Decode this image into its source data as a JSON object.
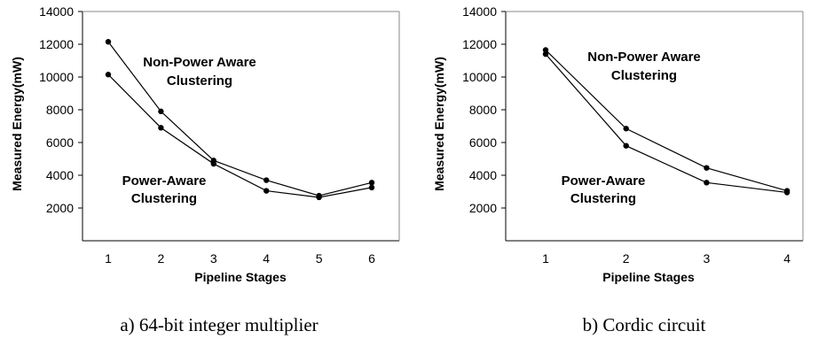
{
  "chart_data": [
    {
      "type": "line",
      "caption": "a) 64-bit integer multiplier",
      "xlabel": "Pipeline Stages",
      "ylabel": "Measured Energy(mW)",
      "categories": [
        "1",
        "2",
        "3",
        "4",
        "5",
        "6"
      ],
      "ylim": [
        0,
        14000
      ],
      "yticks": [
        "2000",
        "4000",
        "6000",
        "8000",
        "10000",
        "12000",
        "14000"
      ],
      "series": [
        {
          "values": [
            12150,
            7900,
            4900,
            3700,
            2750,
            3550
          ]
        },
        {
          "values": [
            10150,
            6900,
            4700,
            3050,
            2650,
            3250
          ]
        }
      ],
      "annotations": [
        {
          "lines": [
            "Non-Power Aware",
            "Clustering"
          ]
        },
        {
          "lines": [
            "Power-Aware",
            "Clustering"
          ]
        }
      ],
      "grid": false,
      "legend": "none"
    },
    {
      "type": "line",
      "caption": "b) Cordic circuit",
      "xlabel": "Pipeline Stages",
      "ylabel": "Measured Energy(mW)",
      "categories": [
        "1",
        "2",
        "3",
        "4"
      ],
      "ylim": [
        0,
        14000
      ],
      "yticks": [
        "2000",
        "4000",
        "6000",
        "8000",
        "10000",
        "12000",
        "14000"
      ],
      "series": [
        {
          "values": [
            11650,
            6850,
            4450,
            3050
          ]
        },
        {
          "values": [
            11400,
            5800,
            3550,
            2950
          ]
        }
      ],
      "annotations": [
        {
          "lines": [
            "Non-Power Aware",
            "Clustering"
          ]
        },
        {
          "lines": [
            "Power-Aware",
            "Clustering"
          ]
        }
      ],
      "grid": false,
      "legend": "none"
    }
  ]
}
